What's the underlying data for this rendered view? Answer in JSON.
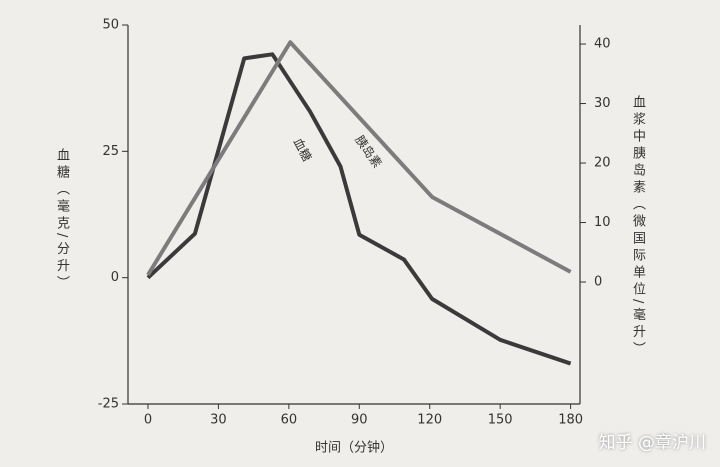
{
  "chart_data": {
    "type": "line",
    "y_label": "血糖（毫克/分升）",
    "y2_label": "血浆中胰岛素（微国际单位/毫升）",
    "x_label": "时间（分钟）",
    "xlim": [
      -8.5,
      184
    ],
    "xticks": [
      0,
      30,
      60,
      90,
      120,
      150,
      180
    ],
    "ylim": [
      -25,
      50
    ],
    "yticks": [
      -25,
      0,
      25,
      50
    ],
    "y2lim": [
      -20.5,
      43.2
    ],
    "y2ticks": [
      0,
      10,
      20,
      30,
      40
    ],
    "series": [
      {
        "name": "血糖",
        "color": "#3b3a3a",
        "axis": "y",
        "x": [
          0,
          20,
          41,
          53,
          69,
          82,
          90,
          109,
          121,
          150,
          180
        ],
        "values": [
          0,
          8.7,
          43.4,
          44.2,
          32.9,
          22,
          8.5,
          3.6,
          -4.2,
          -12.3,
          -17
        ]
      },
      {
        "name": "胰岛素",
        "color": "#7c7c7c",
        "axis": "y2",
        "x": [
          0,
          60.6,
          121,
          180
        ],
        "values": [
          1.2,
          40.3,
          14.3,
          1.7
        ]
      }
    ]
  },
  "watermark": "知乎 @章沪川"
}
